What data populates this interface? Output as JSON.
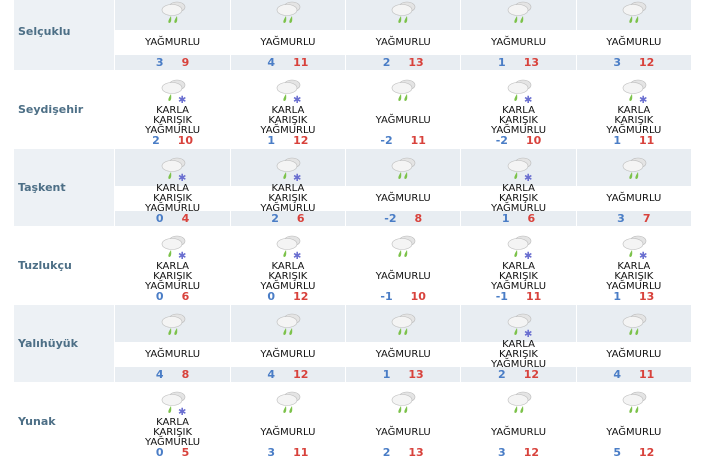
{
  "colors": {
    "min": "#4a7dc6",
    "max": "#d8423c",
    "band": "#e8edf2",
    "label": "#4d6f86"
  },
  "conditions": {
    "rain": "YAĞMURLU",
    "sleet": "KARLA KARIŞIK YAĞMURLU"
  },
  "rows": [
    {
      "name": "Selçuklu",
      "days": [
        {
          "cond": "YAĞMURLU",
          "icon": "rain-icon",
          "min": "3",
          "max": "9"
        },
        {
          "cond": "YAĞMURLU",
          "icon": "rain-icon",
          "min": "4",
          "max": "11"
        },
        {
          "cond": "YAĞMURLU",
          "icon": "rain-icon",
          "min": "2",
          "max": "13"
        },
        {
          "cond": "YAĞMURLU",
          "icon": "rain-icon",
          "min": "1",
          "max": "13"
        },
        {
          "cond": "YAĞMURLU",
          "icon": "rain-icon",
          "min": "3",
          "max": "12"
        }
      ]
    },
    {
      "name": "Seydişehir",
      "days": [
        {
          "cond": "KARLA KARIŞIK YAĞMURLU",
          "icon": "sleet-icon",
          "min": "2",
          "max": "10"
        },
        {
          "cond": "KARLA KARIŞIK YAĞMURLU",
          "icon": "sleet-icon",
          "min": "1",
          "max": "12"
        },
        {
          "cond": "YAĞMURLU",
          "icon": "rain-icon",
          "min": "-2",
          "max": "11"
        },
        {
          "cond": "KARLA KARIŞIK YAĞMURLU",
          "icon": "sleet-icon",
          "min": "-2",
          "max": "10"
        },
        {
          "cond": "KARLA KARIŞIK YAĞMURLU",
          "icon": "sleet-icon",
          "min": "1",
          "max": "11"
        }
      ]
    },
    {
      "name": "Taşkent",
      "days": [
        {
          "cond": "KARLA KARIŞIK YAĞMURLU",
          "icon": "sleet-icon",
          "min": "0",
          "max": "4"
        },
        {
          "cond": "KARLA KARIŞIK YAĞMURLU",
          "icon": "sleet-icon",
          "min": "2",
          "max": "6"
        },
        {
          "cond": "YAĞMURLU",
          "icon": "rain-icon",
          "min": "-2",
          "max": "8"
        },
        {
          "cond": "KARLA KARIŞIK YAĞMURLU",
          "icon": "sleet-icon",
          "min": "1",
          "max": "6"
        },
        {
          "cond": "YAĞMURLU",
          "icon": "rain-icon",
          "min": "3",
          "max": "7"
        }
      ]
    },
    {
      "name": "Tuzlukçu",
      "days": [
        {
          "cond": "KARLA KARIŞIK YAĞMURLU",
          "icon": "sleet-icon",
          "min": "0",
          "max": "6"
        },
        {
          "cond": "KARLA KARIŞIK YAĞMURLU",
          "icon": "sleet-icon",
          "min": "0",
          "max": "12"
        },
        {
          "cond": "YAĞMURLU",
          "icon": "rain-icon",
          "min": "-1",
          "max": "10"
        },
        {
          "cond": "KARLA KARIŞIK YAĞMURLU",
          "icon": "sleet-icon",
          "min": "-1",
          "max": "11"
        },
        {
          "cond": "KARLA KARIŞIK YAĞMURLU",
          "icon": "sleet-icon",
          "min": "1",
          "max": "13"
        }
      ]
    },
    {
      "name": "Yalıhüyük",
      "days": [
        {
          "cond": "YAĞMURLU",
          "icon": "rain-icon",
          "min": "4",
          "max": "8"
        },
        {
          "cond": "YAĞMURLU",
          "icon": "rain-icon",
          "min": "4",
          "max": "12"
        },
        {
          "cond": "YAĞMURLU",
          "icon": "rain-icon",
          "min": "1",
          "max": "13"
        },
        {
          "cond": "KARLA KARIŞIK YAĞMURLU",
          "icon": "sleet-icon",
          "min": "2",
          "max": "12"
        },
        {
          "cond": "YAĞMURLU",
          "icon": "rain-icon",
          "min": "4",
          "max": "11"
        }
      ]
    },
    {
      "name": "Yunak",
      "days": [
        {
          "cond": "KARLA KARIŞIK YAĞMURLU",
          "icon": "sleet-icon",
          "min": "0",
          "max": "5"
        },
        {
          "cond": "YAĞMURLU",
          "icon": "rain-icon",
          "min": "3",
          "max": "11"
        },
        {
          "cond": "YAĞMURLU",
          "icon": "rain-icon",
          "min": "2",
          "max": "13"
        },
        {
          "cond": "YAĞMURLU",
          "icon": "rain-icon",
          "min": "3",
          "max": "12"
        },
        {
          "cond": "YAĞMURLU",
          "icon": "rain-icon",
          "min": "5",
          "max": "12"
        }
      ]
    }
  ]
}
